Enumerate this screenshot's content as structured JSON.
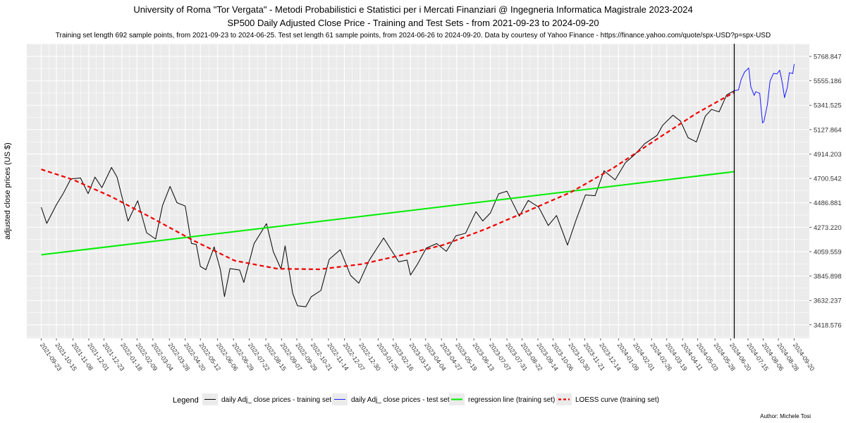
{
  "chart_data": {
    "type": "line",
    "title_lines": [
      "University of Roma \"Tor Vergata\" - Metodi Probabilistici e Statistici per i Mercati Finanziari @ Ingegneria Informatica Magistrale 2023-2024",
      "SP500 Daily Adjusted Close Price - Training and Test Sets - from 2021-09-23 to 2024-09-20"
    ],
    "subtitle": "Training set length 692 sample points, from 2021-09-23 to 2024-06-25. Test set length 61 sample points, from 2024-06-26 to 2024-09-20. Data by courtesy of Yahoo Finance - https://finance.yahoo.com/quote/spx-USD?p=spx-USD",
    "xlabel": "",
    "ylabel": "adjusted close prices (US $)",
    "caption": "Author: Michele Tosi",
    "xlim": [
      "2021-09-02",
      "2024-10-12"
    ],
    "ylim": [
      3300,
      5880
    ],
    "y_ticks": [
      3418.576,
      3632.237,
      3845.898,
      4059.559,
      4273.22,
      4486.881,
      4700.542,
      4914.203,
      5127.864,
      5341.525,
      5555.186,
      5768.847
    ],
    "y_tick_labels": [
      "3418.576",
      "3632.237",
      "3845.898",
      "4059.559",
      "4273.220",
      "4486.881",
      "4700.542",
      "4914.203",
      "5127.864",
      "5341.525",
      "5555.186",
      "5768.847"
    ],
    "x_ticks": [
      "2021-09-23",
      "2021-10-15",
      "2021-11-08",
      "2021-12-01",
      "2021-12-23",
      "2022-01-18",
      "2022-02-09",
      "2022-03-04",
      "2022-03-28",
      "2022-04-20",
      "2022-05-12",
      "2022-06-06",
      "2022-06-29",
      "2022-07-22",
      "2022-08-15",
      "2022-09-07",
      "2022-09-29",
      "2022-10-21",
      "2022-11-14",
      "2022-12-07",
      "2022-12-30",
      "2023-01-25",
      "2023-02-16",
      "2023-03-13",
      "2023-04-04",
      "2023-04-27",
      "2023-05-19",
      "2023-06-13",
      "2023-07-07",
      "2023-07-31",
      "2023-08-22",
      "2023-09-14",
      "2023-10-06",
      "2023-10-30",
      "2023-11-21",
      "2023-12-14",
      "2024-01-09",
      "2024-02-01",
      "2024-02-26",
      "2024-03-19",
      "2024-04-11",
      "2024-05-03",
      "2024-05-28",
      "2024-06-20",
      "2024-07-15",
      "2024-08-06",
      "2024-08-28",
      "2024-09-20"
    ],
    "x_tick_labels": [
      "2021-09-23",
      "2021-10-15",
      "2021-11-08",
      "2021-12-01",
      "2021-12-23",
      "2022-01-18",
      "2022-02-09",
      "2022-03-04",
      "2022-03-28",
      "2022-04-20",
      "2022-05-12",
      "2022-06-06",
      "2022-06-29",
      "2022-07-22",
      "2022-08-15",
      "2022-09-07",
      "2022-09-29",
      "2022-10-21",
      "2022-11-14",
      "2022-12-07",
      "2022-12-30",
      "2023-01-25",
      "2023-02-16",
      "2023-03-13",
      "2023-04-04",
      "2023-04-27",
      "2023-05-19",
      "2023-06-13",
      "2023-07-07",
      "2023-07-31",
      "2023-08-22",
      "2023-09-14",
      "2023-10-06",
      "2023-10-30",
      "2023-11-21",
      "2023-12-14",
      "2024-01-09",
      "2024-02-01",
      "2024-02-26",
      "2024-03-19",
      "2024-04-11",
      "2024-05-03",
      "2024-05-28",
      "2024-06-20",
      "2024-07-15",
      "2024-08-06",
      "2024-08-28",
      "2024-09-20"
    ],
    "split_date": "2024-06-25",
    "grid": true,
    "legend_title": "Legend",
    "legend_position": "bottom",
    "series": [
      {
        "name": "daily Adj_ close prices - training set",
        "color": "#000000",
        "style": "solid",
        "x": [
          "2021-09-23",
          "2021-10-01",
          "2021-10-15",
          "2021-10-25",
          "2021-11-05",
          "2021-11-19",
          "2021-11-30",
          "2021-12-10",
          "2021-12-20",
          "2022-01-03",
          "2022-01-11",
          "2022-01-27",
          "2022-02-10",
          "2022-02-23",
          "2022-03-08",
          "2022-03-18",
          "2022-03-29",
          "2022-04-08",
          "2022-04-20",
          "2022-04-29",
          "2022-05-06",
          "2022-05-12",
          "2022-05-20",
          "2022-06-01",
          "2022-06-10",
          "2022-06-16",
          "2022-06-24",
          "2022-07-08",
          "2022-07-14",
          "2022-07-29",
          "2022-08-16",
          "2022-08-26",
          "2022-09-06",
          "2022-09-12",
          "2022-09-23",
          "2022-09-30",
          "2022-10-12",
          "2022-10-20",
          "2022-11-03",
          "2022-11-15",
          "2022-12-01",
          "2022-12-16",
          "2022-12-28",
          "2023-01-12",
          "2023-02-02",
          "2023-02-24",
          "2023-03-08",
          "2023-03-13",
          "2023-03-23",
          "2023-04-05",
          "2023-04-20",
          "2023-05-04",
          "2023-05-18",
          "2023-06-01",
          "2023-06-16",
          "2023-06-26",
          "2023-07-07",
          "2023-07-19",
          "2023-07-31",
          "2023-08-10",
          "2023-08-18",
          "2023-08-31",
          "2023-09-15",
          "2023-09-29",
          "2023-10-11",
          "2023-10-27",
          "2023-11-09",
          "2023-11-22",
          "2023-12-06",
          "2023-12-19",
          "2024-01-04",
          "2024-01-19",
          "2024-02-01",
          "2024-02-16",
          "2024-03-05",
          "2024-03-13",
          "2024-03-28",
          "2024-04-08",
          "2024-04-19",
          "2024-05-01",
          "2024-05-14",
          "2024-05-23",
          "2024-06-03",
          "2024-06-14",
          "2024-06-25"
        ],
        "y": [
          4448,
          4307,
          4470,
          4570,
          4697,
          4704,
          4567,
          4712,
          4620,
          4797,
          4713,
          4327,
          4505,
          4225,
          4170,
          4463,
          4631,
          4488,
          4459,
          4132,
          4123,
          3930,
          3901,
          4101,
          3901,
          3666,
          3911,
          3899,
          3790,
          4130,
          4305,
          4057,
          3908,
          4110,
          3693,
          3585,
          3577,
          3665,
          3720,
          3992,
          4076,
          3852,
          3783,
          3983,
          4179,
          3970,
          3986,
          3855,
          3948,
          4091,
          4130,
          4062,
          4198,
          4221,
          4410,
          4328,
          4398,
          4566,
          4589,
          4468,
          4370,
          4508,
          4450,
          4288,
          4376,
          4117,
          4347,
          4556,
          4549,
          4768,
          4688,
          4839,
          4906,
          5005,
          5078,
          5165,
          5254,
          5202,
          5057,
          5020,
          5246,
          5305,
          5283,
          5431,
          5469
        ]
      },
      {
        "name": "daily Adj_ close prices - test set",
        "color": "#1a1aff",
        "style": "solid",
        "x": [
          "2024-06-25",
          "2024-07-01",
          "2024-07-05",
          "2024-07-10",
          "2024-07-16",
          "2024-07-19",
          "2024-07-24",
          "2024-07-26",
          "2024-08-01",
          "2024-08-05",
          "2024-08-07",
          "2024-08-12",
          "2024-08-16",
          "2024-08-21",
          "2024-08-26",
          "2024-08-30",
          "2024-09-03",
          "2024-09-06",
          "2024-09-10",
          "2024-09-13",
          "2024-09-18",
          "2024-09-20"
        ],
        "y": [
          5469,
          5475,
          5567,
          5633,
          5667,
          5505,
          5427,
          5459,
          5446,
          5186,
          5199,
          5344,
          5554,
          5620,
          5616,
          5648,
          5529,
          5408,
          5496,
          5626,
          5618,
          5702
        ]
      },
      {
        "name": "regression line (training set)",
        "color": "#00ee00",
        "style": "solid",
        "x": [
          "2021-09-23",
          "2024-06-25"
        ],
        "y": [
          4032,
          4760
        ]
      },
      {
        "name": "LOESS curve (training set)",
        "color": "#ee0000",
        "style": "dashed",
        "x": [
          "2021-09-23",
          "2021-11-08",
          "2022-01-03",
          "2022-03-01",
          "2022-05-01",
          "2022-07-01",
          "2022-09-01",
          "2022-11-01",
          "2023-01-01",
          "2023-03-01",
          "2023-05-01",
          "2023-07-01",
          "2023-09-01",
          "2023-11-01",
          "2024-01-01",
          "2024-03-01",
          "2024-05-01",
          "2024-06-25"
        ],
        "y": [
          4780,
          4690,
          4540,
          4360,
          4160,
          3980,
          3910,
          3905,
          3950,
          4030,
          4120,
          4260,
          4420,
          4580,
          4790,
          5030,
          5270,
          5455
        ]
      }
    ]
  }
}
